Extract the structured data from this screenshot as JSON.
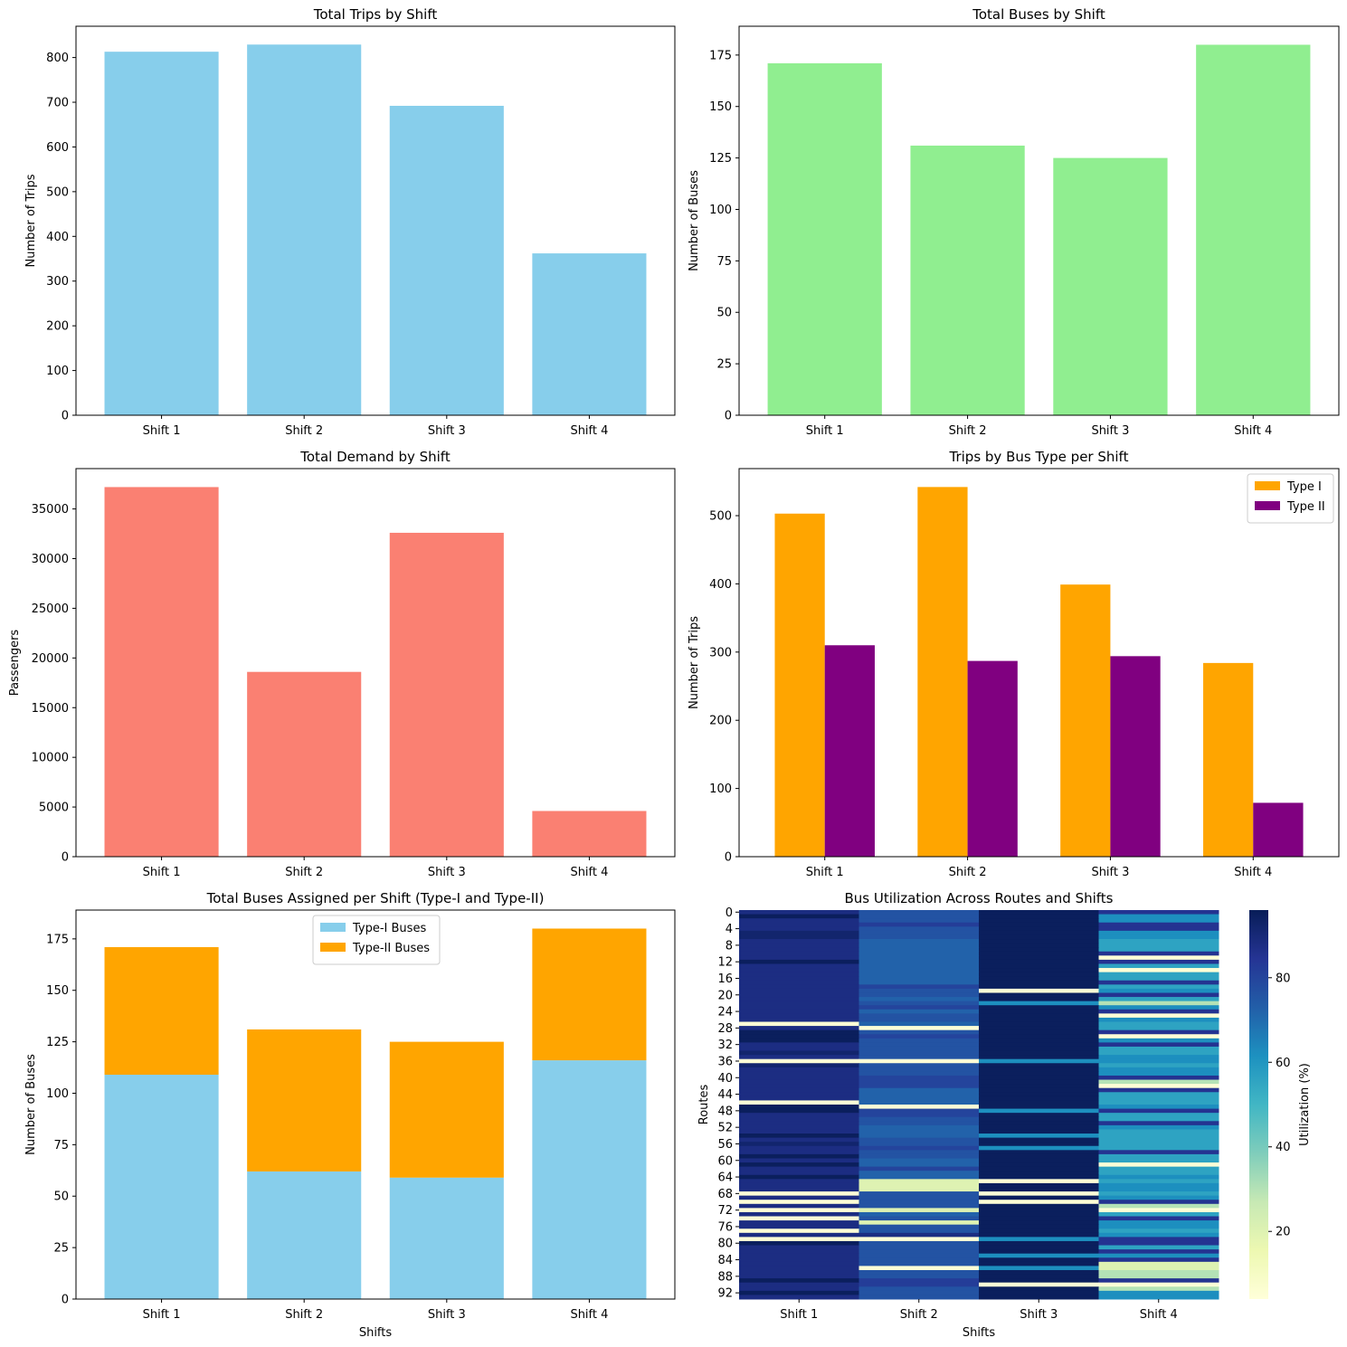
{
  "chart_data": [
    {
      "type": "bar",
      "title": "Total Trips by Shift",
      "xlabel": "",
      "ylabel": "Number of Trips",
      "categories": [
        "Shift 1",
        "Shift 2",
        "Shift 3",
        "Shift 4"
      ],
      "values": [
        813,
        829,
        692,
        362
      ],
      "color": "#87ceeb",
      "ylim": [
        0,
        870
      ],
      "yticks": [
        0,
        100,
        200,
        300,
        400,
        500,
        600,
        700,
        800
      ]
    },
    {
      "type": "bar",
      "title": "Total Buses by Shift",
      "xlabel": "",
      "ylabel": "Number of Buses",
      "categories": [
        "Shift 1",
        "Shift 2",
        "Shift 3",
        "Shift 4"
      ],
      "values": [
        171,
        131,
        125,
        180
      ],
      "color": "#90ee90",
      "ylim": [
        0,
        189
      ],
      "yticks": [
        0,
        25,
        50,
        75,
        100,
        125,
        150,
        175
      ]
    },
    {
      "type": "bar",
      "title": "Total Demand by Shift",
      "xlabel": "",
      "ylabel": "Passengers",
      "categories": [
        "Shift 1",
        "Shift 2",
        "Shift 3",
        "Shift 4"
      ],
      "values": [
        37200,
        18600,
        32600,
        4600
      ],
      "color": "#fa8072",
      "ylim": [
        0,
        39060
      ],
      "yticks": [
        0,
        5000,
        10000,
        15000,
        20000,
        25000,
        30000,
        35000
      ]
    },
    {
      "type": "bar",
      "title": "Trips by Bus Type per Shift",
      "xlabel": "",
      "ylabel": "Number of Trips",
      "categories": [
        "Shift 1",
        "Shift 2",
        "Shift 3",
        "Shift 4"
      ],
      "series": [
        {
          "name": "Type I",
          "values": [
            503,
            542,
            399,
            284
          ],
          "color": "#ffa500"
        },
        {
          "name": "Type II",
          "values": [
            310,
            287,
            294,
            79
          ],
          "color": "#800080"
        }
      ],
      "legend": "top-right",
      "ylim": [
        0,
        569
      ],
      "yticks": [
        0,
        100,
        200,
        300,
        400,
        500
      ]
    },
    {
      "type": "bar",
      "title": "Total Buses Assigned per Shift (Type-I and Type-II)",
      "xlabel": "Shifts",
      "ylabel": "Number of Buses",
      "categories": [
        "Shift 1",
        "Shift 2",
        "Shift 3",
        "Shift 4"
      ],
      "stacked": true,
      "series": [
        {
          "name": "Type-I Buses",
          "values": [
            109,
            62,
            59,
            116
          ],
          "color": "#87ceeb"
        },
        {
          "name": "Type-II Buses",
          "values": [
            62,
            69,
            66,
            64
          ],
          "color": "#ffa500"
        }
      ],
      "legend": "top-center",
      "ylim": [
        0,
        189
      ],
      "yticks": [
        0,
        25,
        50,
        75,
        100,
        125,
        150,
        175
      ]
    },
    {
      "type": "heatmap",
      "title": "Bus Utilization Across Routes and Shifts",
      "xlabel": "Shifts",
      "ylabel": "Routes",
      "columns": [
        "Shift 1",
        "Shift 2",
        "Shift 3",
        "Shift 4"
      ],
      "yticks": [
        0,
        4,
        8,
        12,
        16,
        20,
        24,
        28,
        32,
        36,
        40,
        44,
        48,
        52,
        56,
        60,
        64,
        68,
        72,
        76,
        80,
        84,
        88,
        92
      ],
      "colorbar": {
        "label": "Utilization (%)",
        "ticks": [
          20,
          40,
          60,
          80
        ],
        "range": [
          4,
          96
        ]
      },
      "values": [
        [
          88,
          76,
          95,
          85
        ],
        [
          95,
          76,
          95,
          62
        ],
        [
          88,
          76,
          95,
          62
        ],
        [
          88,
          82,
          95,
          85
        ],
        [
          88,
          76,
          95,
          85
        ],
        [
          92,
          76,
          95,
          62
        ],
        [
          92,
          76,
          95,
          62
        ],
        [
          88,
          72,
          95,
          56
        ],
        [
          88,
          72,
          95,
          56
        ],
        [
          88,
          72,
          95,
          56
        ],
        [
          88,
          72,
          95,
          85
        ],
        [
          88,
          72,
          95,
          5
        ],
        [
          95,
          72,
          95,
          85
        ],
        [
          88,
          72,
          95,
          56
        ],
        [
          88,
          72,
          95,
          5
        ],
        [
          88,
          72,
          95,
          56
        ],
        [
          88,
          72,
          95,
          56
        ],
        [
          88,
          72,
          95,
          85
        ],
        [
          88,
          80,
          95,
          56
        ],
        [
          88,
          76,
          5,
          62
        ],
        [
          88,
          76,
          95,
          85
        ],
        [
          88,
          72,
          95,
          56
        ],
        [
          88,
          76,
          62,
          30
        ],
        [
          88,
          80,
          95,
          62
        ],
        [
          88,
          72,
          95,
          85
        ],
        [
          88,
          76,
          95,
          5
        ],
        [
          88,
          76,
          95,
          62
        ],
        [
          5,
          72,
          95,
          56
        ],
        [
          88,
          5,
          95,
          56
        ],
        [
          95,
          76,
          95,
          85
        ],
        [
          95,
          80,
          95,
          5
        ],
        [
          95,
          76,
          95,
          62
        ],
        [
          88,
          76,
          95,
          85
        ],
        [
          88,
          76,
          95,
          56
        ],
        [
          92,
          76,
          95,
          56
        ],
        [
          88,
          76,
          95,
          62
        ],
        [
          5,
          5,
          62,
          62
        ],
        [
          92,
          76,
          95,
          56
        ],
        [
          88,
          76,
          95,
          62
        ],
        [
          88,
          76,
          95,
          62
        ],
        [
          88,
          80,
          95,
          85
        ],
        [
          88,
          80,
          95,
          30
        ],
        [
          88,
          80,
          95,
          5
        ],
        [
          88,
          72,
          95,
          85
        ],
        [
          88,
          72,
          95,
          56
        ],
        [
          88,
          72,
          95,
          56
        ],
        [
          5,
          72,
          95,
          56
        ],
        [
          95,
          5,
          95,
          62
        ],
        [
          95,
          80,
          62,
          85
        ],
        [
          88,
          80,
          95,
          56
        ],
        [
          88,
          76,
          95,
          56
        ],
        [
          88,
          76,
          95,
          85
        ],
        [
          88,
          72,
          95,
          62
        ],
        [
          88,
          72,
          95,
          56
        ],
        [
          95,
          72,
          62,
          56
        ],
        [
          88,
          76,
          95,
          56
        ],
        [
          92,
          76,
          95,
          56
        ],
        [
          88,
          80,
          62,
          56
        ],
        [
          88,
          76,
          95,
          85
        ],
        [
          95,
          76,
          95,
          56
        ],
        [
          88,
          72,
          95,
          56
        ],
        [
          95,
          72,
          95,
          5
        ],
        [
          88,
          80,
          95,
          56
        ],
        [
          88,
          72,
          95,
          56
        ],
        [
          95,
          72,
          95,
          62
        ],
        [
          88,
          20,
          5,
          56
        ],
        [
          88,
          20,
          95,
          62
        ],
        [
          88,
          20,
          95,
          62
        ],
        [
          5,
          76,
          5,
          56
        ],
        [
          88,
          76,
          95,
          62
        ],
        [
          5,
          76,
          5,
          85
        ],
        [
          88,
          76,
          95,
          30
        ],
        [
          5,
          20,
          95,
          5
        ],
        [
          88,
          72,
          95,
          56
        ],
        [
          5,
          76,
          95,
          85
        ],
        [
          88,
          20,
          95,
          62
        ],
        [
          88,
          76,
          95,
          62
        ],
        [
          5,
          76,
          95,
          56
        ],
        [
          88,
          88,
          95,
          62
        ],
        [
          5,
          5,
          62,
          85
        ],
        [
          95,
          76,
          95,
          85
        ],
        [
          88,
          76,
          95,
          56
        ],
        [
          88,
          76,
          95,
          85
        ],
        [
          88,
          76,
          62,
          62
        ],
        [
          88,
          76,
          95,
          85
        ],
        [
          88,
          76,
          95,
          20
        ],
        [
          88,
          5,
          62,
          20
        ],
        [
          88,
          76,
          95,
          30
        ],
        [
          88,
          76,
          95,
          30
        ],
        [
          95,
          82,
          95,
          85
        ],
        [
          88,
          82,
          5,
          5
        ],
        [
          88,
          76,
          95,
          30
        ],
        [
          95,
          76,
          95,
          62
        ],
        [
          88,
          76,
          95,
          62
        ]
      ]
    }
  ]
}
